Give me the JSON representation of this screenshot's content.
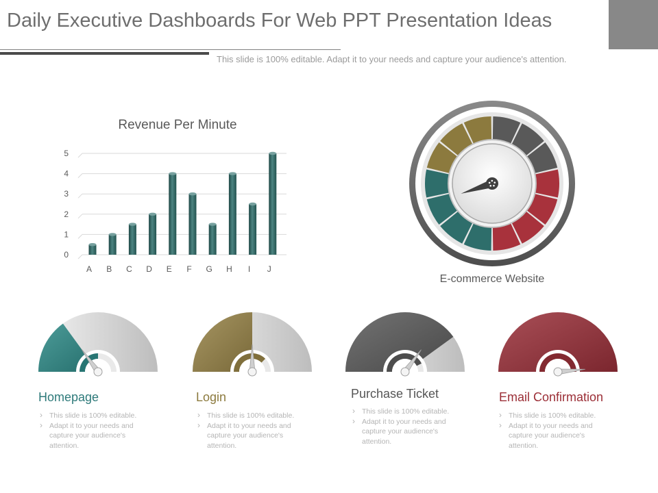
{
  "slide": {
    "title": "Daily Executive Dashboards For Web PPT Presentation Ideas",
    "subtitle": "This slide is 100% editable. Adapt it to your needs and capture your audience's attention."
  },
  "chart_data": {
    "type": "bar",
    "title": "Revenue Per Minute",
    "categories": [
      "A",
      "B",
      "C",
      "D",
      "E",
      "F",
      "G",
      "H",
      "I",
      "J"
    ],
    "values": [
      0.5,
      1,
      1.5,
      2,
      4,
      3,
      1.5,
      4,
      2.5,
      5
    ],
    "ylim": [
      0,
      5
    ],
    "yticks": [
      0,
      1,
      2,
      3,
      4,
      5
    ],
    "grid": true,
    "color": "#2e6e6b"
  },
  "dial": {
    "label": "E-commerce Website",
    "needle_value": 0.2,
    "segment_colors": [
      "#2e6e6b",
      "#2e6e6b",
      "#2e6e6b",
      "#2e6e6b",
      "#8c7a3e",
      "#8c7a3e",
      "#8c7a3e",
      "#595959",
      "#595959",
      "#595959",
      "#a8323c",
      "#a8323c",
      "#a8323c",
      "#a8323c"
    ],
    "needle_color": "#404040"
  },
  "gauges": [
    {
      "title": "Homepage",
      "title_color": "#2e7a7a",
      "color": "#2e8a87",
      "fill": 0.3,
      "needle_value": 0.3,
      "inner_fill": 0.5,
      "bullets": [
        "This slide is 100% editable.",
        "Adapt it to your needs and capture your audience's attention."
      ]
    },
    {
      "title": "Login",
      "title_color": "#8c7a3e",
      "color": "#978347",
      "fill": 0.5,
      "needle_value": 0.5,
      "inner_fill": 0.75,
      "bullets": [
        "This slide is 100% editable.",
        "Adapt it to your needs and capture your audience's attention."
      ]
    },
    {
      "title": "Purchase Ticket",
      "title_color": "#555555",
      "color": "#5a5a5a",
      "fill": 0.8,
      "needle_value": 0.7,
      "inner_fill": 0.85,
      "bullets": [
        "This slide is 100% editable.",
        "Adapt it to your needs and capture your audience's attention."
      ]
    },
    {
      "title": "Email Confirmation",
      "title_color": "#9b2e36",
      "color": "#9a3039",
      "fill": 1.0,
      "needle_value": 0.97,
      "inner_fill": 1.0,
      "bullets": [
        "This slide is 100% editable.",
        "Adapt it to your needs and capture your audience's attention."
      ]
    }
  ]
}
